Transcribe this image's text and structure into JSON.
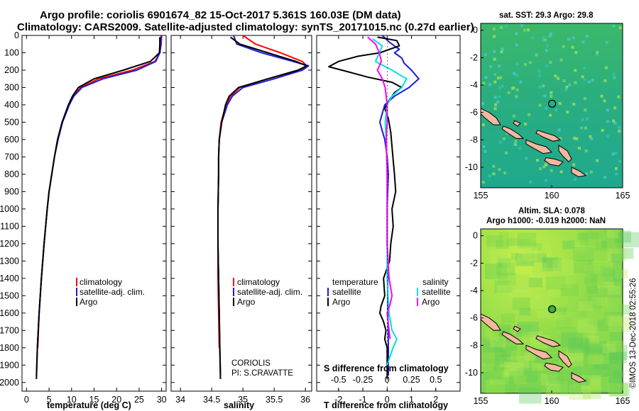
{
  "title": {
    "line1": "Argo profile: coriolis 6901674_82 15-Oct-2017 5.361S 160.03E (DM data)",
    "line2": "Climatology: CARS2009. Satellite-adjusted climatology: synTS_20171015.nc (0.27d earlier)"
  },
  "colors": {
    "climatology": "#ff0000",
    "satellite": "#1c1cd6",
    "argo": "#000000",
    "salinity_sat": "#00e0e0",
    "salinity_argo": "#ff00ff",
    "land": "#f2b8a0",
    "sst_bg": "#2bb37a",
    "sla_bg": "#7dd34a"
  },
  "credit": "©IMOS 13-Dec-2018 02:55:26",
  "chart_data": [
    {
      "type": "line",
      "name": "temperature-profile",
      "xlabel": "temperature (deg C)",
      "ylabel": "depth",
      "xlim": [
        -1,
        31
      ],
      "ylim": [
        2050,
        0
      ],
      "xticks": [
        0,
        5,
        10,
        15,
        20,
        25,
        30
      ],
      "yticks": [
        0,
        100,
        200,
        300,
        400,
        500,
        600,
        700,
        800,
        900,
        1000,
        1100,
        1200,
        1300,
        1400,
        1500,
        1600,
        1700,
        1800,
        1900,
        2000
      ],
      "ytick_labels": [
        "0",
        "100",
        "200",
        "300",
        "400",
        "500",
        "600",
        "700",
        "800",
        "900",
        "1000",
        "1100",
        "1200",
        "1300",
        "1400",
        "1500",
        "1600",
        "1700",
        "1800",
        "1900",
        "2000"
      ],
      "legend": [
        "climatology",
        "satellite-adj. clim.",
        "Argo"
      ],
      "series": [
        {
          "name": "climatology",
          "color": "red",
          "depth": [
            0,
            50,
            100,
            150,
            200,
            250,
            300,
            350,
            400,
            500,
            600,
            700,
            800,
            900,
            1000,
            1200,
            1400,
            1600,
            1800
          ],
          "values": [
            30.0,
            29.9,
            29.6,
            28.5,
            23.5,
            16.0,
            12.0,
            10.3,
            9.4,
            7.9,
            6.9,
            6.2,
            5.6,
            5.0,
            4.6,
            3.9,
            3.3,
            2.8,
            2.5
          ]
        },
        {
          "name": "satellite-adj. clim.",
          "color": "blue",
          "depth": [
            0,
            50,
            100,
            150,
            200,
            250,
            300,
            350,
            400,
            500,
            600,
            700,
            800,
            900,
            1000,
            1200,
            1400,
            1600,
            1800,
            1960
          ],
          "values": [
            29.9,
            29.8,
            29.6,
            28.7,
            24.5,
            17.0,
            12.3,
            10.5,
            9.5,
            8.0,
            7.0,
            6.2,
            5.6,
            5.0,
            4.6,
            3.9,
            3.3,
            2.8,
            2.4,
            2.2
          ]
        },
        {
          "name": "Argo",
          "color": "black",
          "depth": [
            10,
            50,
            100,
            150,
            200,
            250,
            300,
            350,
            400,
            500,
            600,
            700,
            800,
            900,
            1000,
            1200,
            1400,
            1600,
            1800,
            1980
          ],
          "values": [
            29.6,
            29.6,
            29.5,
            27.5,
            21.5,
            15.0,
            11.5,
            10.2,
            9.3,
            7.9,
            6.9,
            6.2,
            5.6,
            5.0,
            4.6,
            3.9,
            3.3,
            2.8,
            2.4,
            2.2
          ]
        }
      ]
    },
    {
      "type": "line",
      "name": "salinity-profile",
      "xlabel": "salinity",
      "ylim": [
        2050,
        0
      ],
      "xlim": [
        33.85,
        36.1
      ],
      "xticks": [
        34,
        34.5,
        35,
        35.5,
        36
      ],
      "xtick_labels": [
        "34",
        "34.5",
        "35",
        "35.5",
        "36"
      ],
      "legend": [
        "climatology",
        "satellite-adj. clim.",
        "Argo"
      ],
      "note1": "CORIOLIS",
      "note2": "PI: S.CRAVATTE",
      "series": [
        {
          "name": "climatology",
          "color": "red",
          "depth": [
            0,
            50,
            100,
            150,
            175,
            200,
            250,
            300,
            350,
            400,
            500,
            600,
            700,
            800,
            1000,
            1200,
            1400,
            1600,
            1800
          ],
          "values": [
            35.0,
            35.2,
            35.6,
            35.95,
            36.02,
            35.9,
            35.4,
            34.95,
            34.8,
            34.73,
            34.65,
            34.62,
            34.61,
            34.61,
            34.6,
            34.6,
            34.6,
            34.61,
            34.62
          ]
        },
        {
          "name": "satellite-adj. clim.",
          "color": "blue",
          "depth": [
            0,
            50,
            100,
            150,
            175,
            200,
            250,
            300,
            350,
            400,
            500,
            600,
            700,
            800,
            1000,
            1200,
            1400,
            1600,
            1800,
            1960
          ],
          "values": [
            34.85,
            34.9,
            35.3,
            35.8,
            36.05,
            35.95,
            35.5,
            35.0,
            34.83,
            34.75,
            34.66,
            34.62,
            34.61,
            34.61,
            34.6,
            34.6,
            34.61,
            34.62,
            34.63,
            34.64
          ]
        },
        {
          "name": "Argo",
          "color": "black",
          "depth": [
            10,
            50,
            100,
            150,
            175,
            200,
            250,
            300,
            350,
            400,
            500,
            600,
            700,
            800,
            1000,
            1200,
            1400,
            1600,
            1800,
            1980
          ],
          "values": [
            34.8,
            34.95,
            35.4,
            35.85,
            36.02,
            35.88,
            35.4,
            34.93,
            34.78,
            34.72,
            34.66,
            34.62,
            34.61,
            34.61,
            34.6,
            34.6,
            34.61,
            34.62,
            34.63,
            34.64
          ]
        }
      ]
    },
    {
      "type": "line",
      "name": "difference-profile",
      "xlabel": "T difference from climatology",
      "xlabel_top": "S difference from climatology",
      "xlim": [
        -2.9,
        3.0
      ],
      "ylim": [
        2050,
        0
      ],
      "xticks": [
        -2,
        -1,
        0,
        1,
        2
      ],
      "xtick_labels": [
        "-2",
        "-1",
        "0",
        "1",
        "2"
      ],
      "sticks": [
        -0.5,
        -0.25,
        0,
        0.25,
        0.5
      ],
      "stick_labels": [
        "-0.5",
        "-0.25",
        "0",
        "0.25",
        "0.5"
      ],
      "legend_left_title": "temperature",
      "legend_right_title": "salinity",
      "legend_left": [
        "satellite",
        "Argo"
      ],
      "legend_right": [
        "satellite",
        "Argo"
      ],
      "series": [
        {
          "name": "T satellite",
          "color": "blue",
          "depth": [
            0,
            40,
            80,
            100,
            130,
            160,
            200,
            250,
            300,
            350,
            400,
            450,
            500,
            550,
            600,
            700,
            800,
            1000,
            1200,
            1400,
            1600,
            1800,
            1960
          ],
          "values": [
            -0.2,
            0.1,
            0.5,
            0.3,
            0.6,
            0.7,
            1.0,
            1.3,
            0.9,
            0.3,
            -0.1,
            -0.2,
            -0.3,
            -0.2,
            -0.1,
            0.0,
            0.05,
            0.0,
            0.0,
            0.02,
            0.03,
            0.05,
            0.05
          ]
        },
        {
          "name": "T Argo",
          "color": "black",
          "depth": [
            10,
            30,
            60,
            100,
            120,
            150,
            180,
            210,
            240,
            270,
            300,
            330,
            370,
            420,
            480,
            560,
            640,
            720,
            800,
            900,
            1000,
            1100,
            1200,
            1300,
            1400,
            1500,
            1560,
            1600,
            1650,
            1700,
            1750,
            1800,
            1900,
            1980
          ],
          "values": [
            -0.4,
            0.4,
            0.5,
            -0.3,
            -1.2,
            -2.0,
            -2.4,
            -1.6,
            -0.8,
            0.2,
            0.6,
            0.3,
            0.1,
            -0.1,
            0.05,
            0.15,
            0.2,
            0.25,
            0.3,
            0.35,
            0.2,
            0.25,
            0.15,
            0.1,
            -0.15,
            -0.1,
            -0.25,
            -0.3,
            -0.15,
            -0.05,
            -0.1,
            0.0,
            0.0,
            0.0
          ]
        },
        {
          "name": "S satellite",
          "color": "cyan",
          "depth": [
            20,
            60,
            100,
            150,
            200,
            250,
            300,
            350,
            400,
            500,
            600,
            800,
            1000,
            1200,
            1400,
            1600,
            1700,
            1750,
            1800,
            1900
          ],
          "values": [
            -0.15,
            -0.05,
            -0.08,
            -0.12,
            0.05,
            0.2,
            0.15,
            0.05,
            0.0,
            -0.02,
            -0.01,
            0.0,
            0.0,
            0.0,
            0.0,
            0.02,
            0.05,
            0.1,
            0.06,
            0.0
          ]
        },
        {
          "name": "S Argo",
          "color": "magenta",
          "depth": [
            10,
            50,
            100,
            150,
            200,
            250,
            300,
            350,
            400,
            500,
            600,
            800,
            1000,
            1200,
            1400,
            1500,
            1550,
            1600,
            1700,
            1750
          ],
          "values": [
            -0.2,
            -0.12,
            -0.08,
            -0.06,
            -0.1,
            -0.05,
            -0.02,
            -0.01,
            0.0,
            0.0,
            -0.01,
            0.0,
            0.0,
            0.0,
            0.02,
            0.05,
            0.03,
            0.0,
            0.02,
            0.03
          ]
        }
      ]
    },
    {
      "type": "heatmap",
      "name": "sst-map",
      "title": "sat. SST: 29.3 Argo: 29.8",
      "xlim": [
        155,
        165
      ],
      "ylim": [
        -11.5,
        0.5
      ],
      "xticks": [
        155,
        160,
        165
      ],
      "yticks": [
        0,
        -2,
        -4,
        -6,
        -8,
        -10
      ],
      "xtick_labels": [
        "155",
        "160",
        "165"
      ],
      "ytick_labels": [
        "0",
        "-2",
        "-4",
        "-6",
        "-8",
        "-10"
      ],
      "marker": {
        "lon": 160.03,
        "lat": -5.361
      }
    },
    {
      "type": "heatmap",
      "name": "sla-map",
      "title": "Altim. SLA: 0.078",
      "subtitle": "Argo h1000: -0.019 h2000: NaN",
      "xlim": [
        155,
        165
      ],
      "ylim": [
        -11.5,
        0.5
      ],
      "xticks": [
        155,
        160,
        165
      ],
      "yticks": [
        0,
        -2,
        -4,
        -6,
        -8,
        -10
      ],
      "xtick_labels": [
        "155",
        "160",
        "165"
      ],
      "ytick_labels": [
        "0",
        "-2",
        "-4",
        "-6",
        "-8",
        "-10"
      ],
      "marker": {
        "lon": 160.03,
        "lat": -5.361
      }
    }
  ]
}
